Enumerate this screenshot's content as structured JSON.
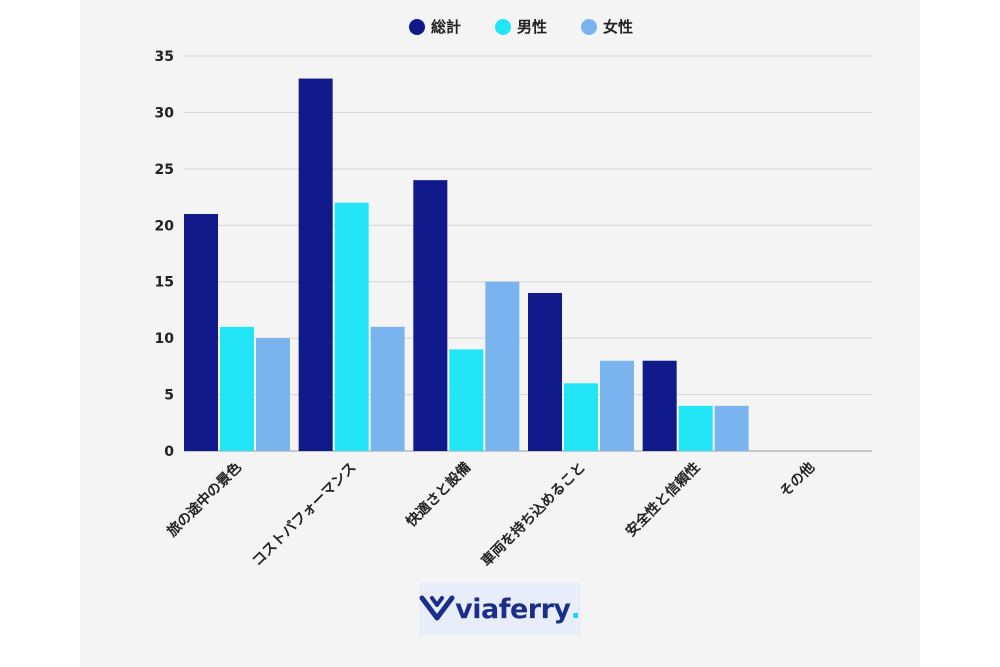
{
  "chart_data": {
    "type": "bar",
    "categories": [
      "旅の途中の景色",
      "コストパフォーマンス",
      "快適さと設備",
      "車両を持ち込めること",
      "安全性と信頼性",
      "その他"
    ],
    "series": [
      {
        "name": "総計",
        "color": "#101a8a",
        "values": [
          21,
          33,
          24,
          14,
          8,
          0
        ]
      },
      {
        "name": "男性",
        "color": "#22e6f8",
        "values": [
          11,
          22,
          9,
          6,
          4,
          0
        ]
      },
      {
        "name": "女性",
        "color": "#7ab4ee",
        "values": [
          10,
          11,
          15,
          8,
          4,
          0
        ]
      }
    ],
    "yticks": [
      "0",
      "5",
      "10",
      "15",
      "20",
      "25",
      "30",
      "35"
    ],
    "ylim": [
      0,
      35
    ],
    "grid": true,
    "legend_position": "top-center"
  },
  "logo": {
    "text": "viaferry",
    "dot": "."
  }
}
